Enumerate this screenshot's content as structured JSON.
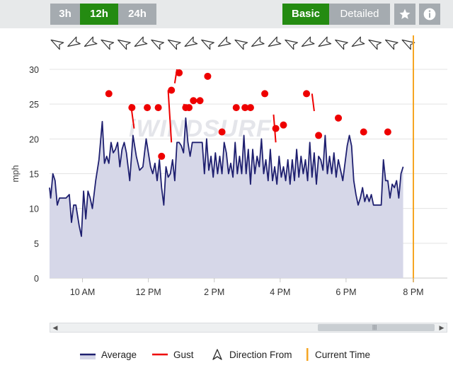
{
  "range_buttons": [
    "3h",
    "12h",
    "24h"
  ],
  "active_range": "12h",
  "view_buttons": [
    "Basic",
    "Detailed"
  ],
  "active_view": "Basic",
  "icons": {
    "favorite": "star-icon",
    "info": "info-icon"
  },
  "watermark": "iWINDSURF",
  "colors": {
    "average": "#1f2070",
    "average_fill": "#d6d7e8",
    "gust": "#ee0000",
    "current_time": "#f5a623",
    "active_button": "#248b11",
    "inactive_button": "#a5abb0"
  },
  "legend": {
    "average": "Average",
    "gust": "Gust",
    "direction": "Direction From",
    "current_time": "Current Time"
  },
  "chart_data": {
    "type": "line",
    "ylabel": "mph",
    "ylim": [
      0,
      30
    ],
    "yticks": [
      0,
      5,
      10,
      15,
      20,
      25,
      30
    ],
    "x_range": [
      "9:00",
      "20:00"
    ],
    "xticks": [
      "10 AM",
      "12 PM",
      "2 PM",
      "4 PM",
      "6 PM",
      "8 PM"
    ],
    "current_time": "20:00",
    "direction_from_deg": [
      300,
      240,
      240,
      300,
      300,
      240,
      300,
      300,
      240,
      300,
      240,
      300,
      240,
      240,
      300,
      240,
      240,
      300,
      240,
      300,
      300,
      300
    ],
    "average": [
      [
        "9:00",
        13
      ],
      [
        "9:02",
        11.5
      ],
      [
        "9:06",
        15
      ],
      [
        "9:10",
        14
      ],
      [
        "9:14",
        10.5
      ],
      [
        "9:18",
        11.5
      ],
      [
        "9:24",
        11.5
      ],
      [
        "9:30",
        11.5
      ],
      [
        "9:36",
        12
      ],
      [
        "9:40",
        8
      ],
      [
        "9:44",
        10.5
      ],
      [
        "9:48",
        10.5
      ],
      [
        "9:54",
        7.5
      ],
      [
        "9:58",
        6
      ],
      [
        "10:02",
        12.5
      ],
      [
        "10:06",
        8.5
      ],
      [
        "10:10",
        12.5
      ],
      [
        "10:14",
        11.5
      ],
      [
        "10:18",
        10
      ],
      [
        "10:24",
        14
      ],
      [
        "10:30",
        17
      ],
      [
        "10:36",
        22.5
      ],
      [
        "10:40",
        16.5
      ],
      [
        "10:44",
        17.5
      ],
      [
        "10:48",
        16.5
      ],
      [
        "10:52",
        19.5
      ],
      [
        "10:56",
        18
      ],
      [
        "11:00",
        18.5
      ],
      [
        "11:04",
        19.5
      ],
      [
        "11:08",
        16
      ],
      [
        "11:12",
        18.5
      ],
      [
        "11:16",
        19.5
      ],
      [
        "11:20",
        18
      ],
      [
        "11:26",
        14
      ],
      [
        "11:32",
        20.5
      ],
      [
        "11:38",
        17.5
      ],
      [
        "11:44",
        15.5
      ],
      [
        "11:50",
        16
      ],
      [
        "11:56",
        20
      ],
      [
        "12:00",
        18
      ],
      [
        "12:04",
        16
      ],
      [
        "12:08",
        15
      ],
      [
        "12:12",
        16.5
      ],
      [
        "12:16",
        14
      ],
      [
        "12:20",
        17
      ],
      [
        "12:24",
        13
      ],
      [
        "12:28",
        10.5
      ],
      [
        "12:32",
        16
      ],
      [
        "12:36",
        14.5
      ],
      [
        "12:40",
        15
      ],
      [
        "12:44",
        17
      ],
      [
        "12:48",
        14
      ],
      [
        "12:52",
        19.5
      ],
      [
        "12:56",
        19.5
      ],
      [
        "13:00",
        19
      ],
      [
        "13:04",
        18
      ],
      [
        "13:08",
        23
      ],
      [
        "13:12",
        19.5
      ],
      [
        "13:16",
        17.5
      ],
      [
        "13:20",
        19.5
      ],
      [
        "13:26",
        19.5
      ],
      [
        "13:32",
        19.5
      ],
      [
        "13:38",
        19.5
      ],
      [
        "13:42",
        15
      ],
      [
        "13:46",
        20
      ],
      [
        "13:50",
        15.5
      ],
      [
        "13:54",
        17.5
      ],
      [
        "13:58",
        14.5
      ],
      [
        "14:02",
        18
      ],
      [
        "14:06",
        15
      ],
      [
        "14:10",
        17.5
      ],
      [
        "14:14",
        15
      ],
      [
        "14:18",
        19.5
      ],
      [
        "14:22",
        18
      ],
      [
        "14:26",
        15
      ],
      [
        "14:30",
        16.5
      ],
      [
        "14:34",
        14.5
      ],
      [
        "14:38",
        19.5
      ],
      [
        "14:42",
        15
      ],
      [
        "14:46",
        17.5
      ],
      [
        "14:50",
        15
      ],
      [
        "14:54",
        20.5
      ],
      [
        "14:58",
        15
      ],
      [
        "15:02",
        18.5
      ],
      [
        "15:06",
        13.5
      ],
      [
        "15:10",
        18.5
      ],
      [
        "15:14",
        15
      ],
      [
        "15:18",
        17.5
      ],
      [
        "15:22",
        16
      ],
      [
        "15:26",
        20
      ],
      [
        "15:30",
        15
      ],
      [
        "15:34",
        17
      ],
      [
        "15:38",
        14
      ],
      [
        "15:42",
        18.5
      ],
      [
        "15:46",
        14
      ],
      [
        "15:50",
        16
      ],
      [
        "15:54",
        13.5
      ],
      [
        "15:58",
        17.5
      ],
      [
        "16:02",
        14.5
      ],
      [
        "16:06",
        16
      ],
      [
        "16:10",
        14
      ],
      [
        "16:14",
        17
      ],
      [
        "16:18",
        13.5
      ],
      [
        "16:22",
        17
      ],
      [
        "16:26",
        14
      ],
      [
        "16:30",
        18.5
      ],
      [
        "16:34",
        14.5
      ],
      [
        "16:38",
        17.5
      ],
      [
        "16:42",
        15
      ],
      [
        "16:46",
        17
      ],
      [
        "16:50",
        14
      ],
      [
        "16:54",
        19.5
      ],
      [
        "16:58",
        14.5
      ],
      [
        "17:02",
        18
      ],
      [
        "17:06",
        13.5
      ],
      [
        "17:10",
        17.5
      ],
      [
        "17:14",
        17
      ],
      [
        "17:18",
        15.5
      ],
      [
        "17:22",
        20.5
      ],
      [
        "17:26",
        15
      ],
      [
        "17:30",
        17.5
      ],
      [
        "17:34",
        15
      ],
      [
        "17:38",
        18
      ],
      [
        "17:42",
        14.5
      ],
      [
        "17:46",
        17
      ],
      [
        "17:50",
        15.5
      ],
      [
        "17:54",
        14
      ],
      [
        "17:58",
        16.5
      ],
      [
        "18:02",
        19
      ],
      [
        "18:06",
        20.5
      ],
      [
        "18:10",
        19
      ],
      [
        "18:14",
        14
      ],
      [
        "18:18",
        12
      ],
      [
        "18:22",
        10.5
      ],
      [
        "18:26",
        11.5
      ],
      [
        "18:30",
        13
      ],
      [
        "18:34",
        11
      ],
      [
        "18:38",
        12
      ],
      [
        "18:42",
        11
      ],
      [
        "18:46",
        12
      ],
      [
        "18:50",
        10.5
      ],
      [
        "18:54",
        10.5
      ],
      [
        "19:00",
        10.5
      ],
      [
        "19:04",
        10.5
      ],
      [
        "19:08",
        17
      ],
      [
        "19:12",
        14
      ],
      [
        "19:16",
        14
      ],
      [
        "19:20",
        11.5
      ],
      [
        "19:24",
        13.5
      ],
      [
        "19:28",
        13
      ],
      [
        "19:32",
        14
      ],
      [
        "19:36",
        11.5
      ],
      [
        "19:40",
        15
      ],
      [
        "19:44",
        16
      ]
    ],
    "gust": [
      [
        "10:48",
        26.5
      ],
      [
        "11:30",
        24.5
      ],
      [
        "11:58",
        24.5
      ],
      [
        "12:18",
        24.5
      ],
      [
        "12:24",
        17.5
      ],
      [
        "12:42",
        27
      ],
      [
        "12:56",
        29.5
      ],
      [
        "13:08",
        24.5
      ],
      [
        "13:14",
        24.5
      ],
      [
        "13:22",
        25.5
      ],
      [
        "13:34",
        25.5
      ],
      [
        "13:48",
        29
      ],
      [
        "14:14",
        21
      ],
      [
        "14:40",
        24.5
      ],
      [
        "14:56",
        24.5
      ],
      [
        "15:06",
        24.5
      ],
      [
        "15:32",
        26.5
      ],
      [
        "15:52",
        21.5
      ],
      [
        "16:06",
        22
      ],
      [
        "16:48",
        26.5
      ],
      [
        "17:10",
        20.5
      ],
      [
        "17:46",
        23
      ],
      [
        "18:32",
        21
      ],
      [
        "19:16",
        21
      ]
    ],
    "gust_segments": [
      [
        [
          "11:28",
          25
        ],
        [
          "11:34",
          21.5
        ]
      ],
      [
        [
          "12:36",
          27
        ],
        [
          "12:42",
          19.5
        ]
      ],
      [
        [
          "12:48",
          28
        ],
        [
          "12:52",
          30
        ]
      ],
      [
        [
          "13:04",
          25
        ],
        [
          "13:10",
          24.5
        ]
      ],
      [
        [
          "15:48",
          23.5
        ],
        [
          "15:52",
          19.5
        ]
      ],
      [
        [
          "16:58",
          26.5
        ],
        [
          "17:02",
          24
        ]
      ]
    ]
  }
}
